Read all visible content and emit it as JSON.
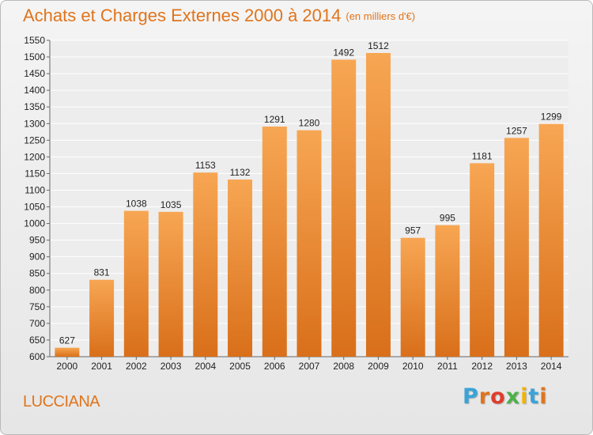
{
  "header": {
    "title": "Achats et Charges Externes 2000 à 2014",
    "subtitle": "(en milliers d'€)"
  },
  "footer": {
    "commune": "LUCCIANA",
    "logo_text": "Proxiti",
    "logo_colors": [
      "#3aa3d8",
      "#e0741c",
      "#e03c2c",
      "#4db04a",
      "#f0b400",
      "#3aa3d8",
      "#e0741c"
    ]
  },
  "colors": {
    "bar_light": "#f7a653",
    "bar_dark": "#d96f1a",
    "title": "#e0741c",
    "grid": "#ffffff"
  },
  "chart_data": {
    "type": "bar",
    "title": "Achats et Charges Externes 2000 à 2014",
    "subtitle": "(en milliers d'€)",
    "categories": [
      "2000",
      "2001",
      "2002",
      "2003",
      "2004",
      "2005",
      "2006",
      "2007",
      "2008",
      "2009",
      "2010",
      "2011",
      "2012",
      "2013",
      "2014"
    ],
    "values": [
      627,
      831,
      1038,
      1035,
      1153,
      1132,
      1291,
      1280,
      1492,
      1512,
      957,
      995,
      1181,
      1257,
      1299
    ],
    "xlabel": "",
    "ylabel": "",
    "ylim": [
      600,
      1550
    ],
    "ytick_step": 50,
    "grid": true
  }
}
